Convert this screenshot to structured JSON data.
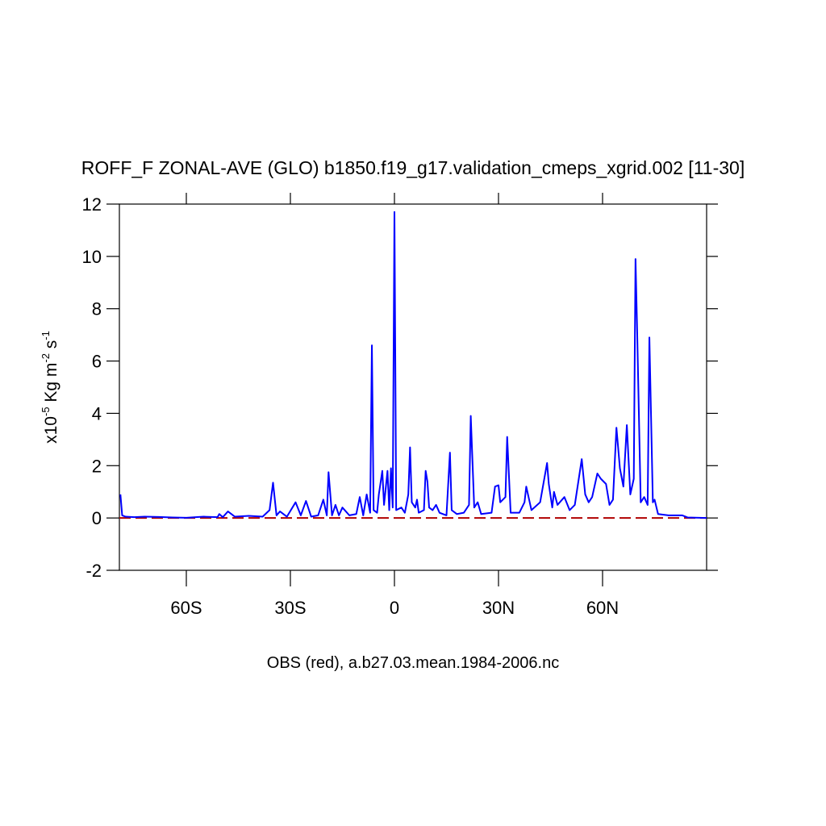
{
  "chart_data": {
    "type": "line",
    "title": "ROFF_F ZONAL-AVE (GLO) b1850.f19_g17.validation_cmeps_xgrid.002 [11-30]",
    "xlabel": "OBS (red), a.b27.03.mean.1984-2006.nc",
    "ylabel_parts": [
      "x10",
      "-5",
      " Kg m",
      "-2",
      " s",
      "-1"
    ],
    "xlim": [
      -79.3,
      90
    ],
    "ylim": [
      -2,
      12
    ],
    "xticks": [
      {
        "value": -60,
        "label": "60S"
      },
      {
        "value": -30,
        "label": "30S"
      },
      0,
      {
        "value": 30,
        "label": "30N"
      },
      {
        "value": 60,
        "label": "60N"
      }
    ],
    "yticks": [
      -2,
      0,
      2,
      4,
      6,
      8,
      10,
      12
    ],
    "series": [
      {
        "color": "#0000ff",
        "dash": false,
        "x": [
          -79,
          -78.5,
          -77.5,
          -75,
          -72,
          -68,
          -64,
          -60,
          -55,
          -51,
          -50.5,
          -49.5,
          -48,
          -46,
          -42,
          -38,
          -36,
          -35,
          -34,
          -33,
          -31,
          -28.5,
          -27,
          -25.5,
          -24,
          -22,
          -20.5,
          -19.5,
          -19,
          -18,
          -17,
          -16,
          -15,
          -13,
          -11,
          -10,
          -9,
          -8,
          -7,
          -6.5,
          -6,
          -5,
          -4.5,
          -3.5,
          -3,
          -2,
          -1.5,
          -1,
          -0.5,
          0,
          0.5,
          2,
          3,
          4,
          4.5,
          5,
          6,
          6.5,
          7,
          8.5,
          9,
          9.5,
          10,
          11,
          12,
          13,
          15,
          16,
          16.5,
          18,
          20,
          21.5,
          22,
          23,
          24,
          25,
          28,
          29,
          30,
          30.5,
          32,
          32.5,
          33.5,
          36,
          37.5,
          38,
          39.5,
          42,
          44,
          44.5,
          45.5,
          46,
          47,
          49,
          50.5,
          52,
          54,
          55,
          56,
          57,
          58.5,
          59.5,
          61,
          62,
          63,
          64,
          65,
          66,
          67,
          68,
          69,
          69.5,
          70,
          71,
          72,
          73,
          73.5,
          74.5,
          75,
          76,
          79,
          83,
          84.5,
          90
        ],
        "values": [
          0.9,
          0.1,
          0.05,
          0.03,
          0.05,
          0.04,
          0.02,
          0.01,
          0.05,
          0.03,
          0.15,
          0.03,
          0.25,
          0.05,
          0.08,
          0.05,
          0.3,
          1.35,
          0.1,
          0.25,
          0.05,
          0.6,
          0.1,
          0.65,
          0.05,
          0.1,
          0.7,
          0.1,
          1.75,
          0.1,
          0.5,
          0.1,
          0.4,
          0.1,
          0.15,
          0.8,
          0.1,
          0.9,
          0.2,
          6.6,
          0.3,
          0.2,
          0.9,
          1.8,
          0.5,
          1.8,
          0.3,
          1.9,
          0.4,
          11.7,
          0.3,
          0.4,
          0.2,
          0.9,
          2.7,
          0.6,
          0.4,
          0.7,
          0.2,
          0.3,
          1.8,
          1.4,
          0.4,
          0.3,
          0.5,
          0.2,
          0.1,
          2.5,
          0.3,
          0.15,
          0.2,
          0.5,
          3.9,
          0.4,
          0.6,
          0.15,
          0.2,
          1.2,
          1.25,
          0.6,
          0.8,
          3.1,
          0.2,
          0.2,
          0.6,
          1.2,
          0.3,
          0.6,
          2.1,
          1.3,
          0.4,
          1.0,
          0.5,
          0.8,
          0.3,
          0.5,
          2.25,
          0.9,
          0.6,
          0.8,
          1.7,
          1.5,
          1.3,
          0.5,
          0.7,
          3.45,
          1.9,
          1.2,
          3.55,
          0.9,
          1.5,
          9.9,
          7,
          0.6,
          0.8,
          0.5,
          6.9,
          0.6,
          0.7,
          0.15,
          0.1,
          0.1,
          0.02,
          0
        ]
      },
      {
        "color": "#b00000",
        "dash": true,
        "x": [
          -79.3,
          90
        ],
        "values": [
          0,
          0
        ]
      }
    ]
  }
}
